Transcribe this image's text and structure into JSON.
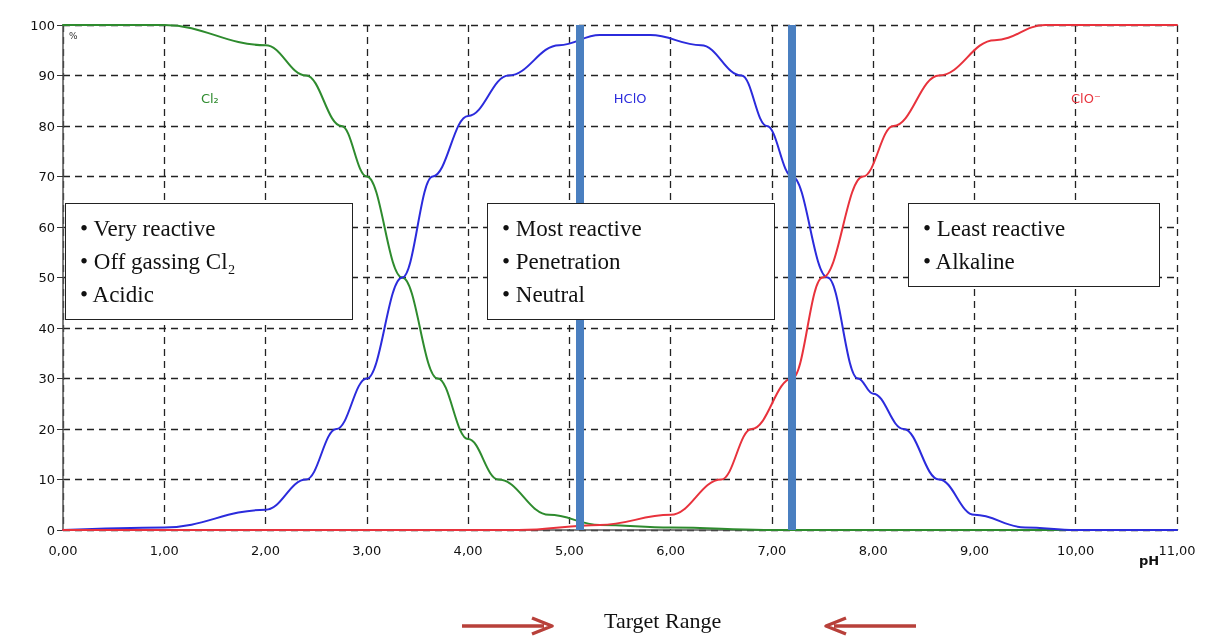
{
  "chart_data": {
    "type": "line",
    "xlabel": "pH",
    "ylabel": "%",
    "x": [
      0,
      1,
      2,
      2.4,
      2.75,
      3.0,
      3.35,
      3.7,
      4.0,
      4.3,
      4.8,
      5.3,
      6.0,
      7.0,
      8.0,
      9.0,
      10.0,
      11.0
    ],
    "series": [
      {
        "name": "Cl₂",
        "color": "#2e8b2e",
        "values": [
          100,
          100,
          96,
          90,
          80,
          70,
          50,
          30,
          18,
          10,
          3,
          1,
          0.5,
          0,
          0,
          0,
          0,
          0
        ]
      },
      {
        "name": "HClO",
        "color": "#2b2bdc",
        "x": [
          0,
          1,
          2,
          2.4,
          2.7,
          3.0,
          3.35,
          3.65,
          4.0,
          4.4,
          4.9,
          5.3,
          5.8,
          6.3,
          6.7,
          6.95,
          7.2,
          7.55,
          7.85,
          8.0,
          8.3,
          8.65,
          9.0,
          9.5,
          10.0,
          11.0
        ],
        "values": [
          0,
          0.5,
          4,
          10,
          20,
          30,
          50,
          70,
          82,
          90,
          96,
          98,
          98,
          96,
          90,
          80,
          70,
          50,
          30,
          27,
          20,
          10,
          3,
          0.5,
          0,
          0
        ]
      },
      {
        "name": "ClO⁻",
        "color": "#e8323c",
        "x": [
          0,
          4.5,
          5.3,
          6.0,
          6.5,
          6.8,
          7.2,
          7.5,
          7.9,
          8.2,
          8.65,
          9.2,
          9.7,
          11.0
        ],
        "values": [
          0,
          0,
          1,
          3,
          10,
          20,
          30,
          50,
          70,
          80,
          90,
          97,
          100,
          100
        ]
      }
    ],
    "xlim": [
      0,
      11
    ],
    "xticks": [
      {
        "value": 0,
        "label": "0,00"
      },
      {
        "value": 1,
        "label": "1,00"
      },
      {
        "value": 2,
        "label": "2,00"
      },
      {
        "value": 3,
        "label": "3,00"
      },
      {
        "value": 4,
        "label": "4,00"
      },
      {
        "value": 5,
        "label": "5,00"
      },
      {
        "value": 6,
        "label": "6,00"
      },
      {
        "value": 7,
        "label": "7,00"
      },
      {
        "value": 8,
        "label": "8,00"
      },
      {
        "value": 9,
        "label": "9,00"
      },
      {
        "value": 10,
        "label": "10,00"
      },
      {
        "value": 11,
        "label": "11,00"
      }
    ],
    "ylim": [
      0,
      100
    ],
    "yticks": [
      0,
      10,
      20,
      30,
      40,
      50,
      60,
      70,
      80,
      90,
      100
    ],
    "grid": true,
    "legend": false,
    "marker": "none",
    "line_style": "solid",
    "ref_lines": [
      {
        "axis": "x",
        "value": 5.1,
        "color": "#4a7fc0"
      },
      {
        "axis": "x",
        "value": 7.2,
        "color": "#4a7fc0"
      }
    ],
    "annotations": [
      "• Very reactive\n• Off gassing Cl₂\n• Acidic",
      "• Most reactive\n• Penetration\n• Neutral",
      "• Least reactive\n• Alkaline",
      "Target Range"
    ]
  }
}
